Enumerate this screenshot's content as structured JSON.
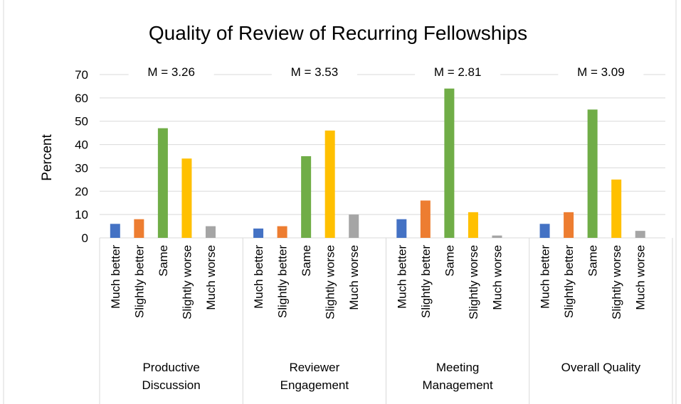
{
  "chart_data": {
    "type": "bar",
    "title": "Quality of Review of Recurring Fellowships",
    "y_label": "Percent",
    "categories": [
      "Productive Discussion",
      "Reviewer Engagement",
      "Meeting Management",
      "Overall Quality"
    ],
    "annotations": [
      "M = 3.26",
      "M = 3.53",
      "M = 2.81",
      "M = 3.09"
    ],
    "series": [
      {
        "name": "Much better",
        "color": "#4472c4",
        "values": [
          6,
          4,
          8,
          6
        ]
      },
      {
        "name": "Slightly better",
        "color": "#ed7d31",
        "values": [
          8,
          5,
          16,
          11
        ]
      },
      {
        "name": "Same",
        "color": "#70ad47",
        "values": [
          47,
          35,
          64,
          55
        ]
      },
      {
        "name": "Slightly worse",
        "color": "#ffc000",
        "values": [
          34,
          46,
          11,
          25
        ]
      },
      {
        "name": "Much worse",
        "color": "#a5a5a5",
        "values": [
          5,
          10,
          1,
          3
        ]
      }
    ],
    "ylim": [
      0,
      70
    ],
    "yticks": [
      0,
      10,
      20,
      30,
      40,
      50,
      60,
      70
    ],
    "grid": true
  }
}
